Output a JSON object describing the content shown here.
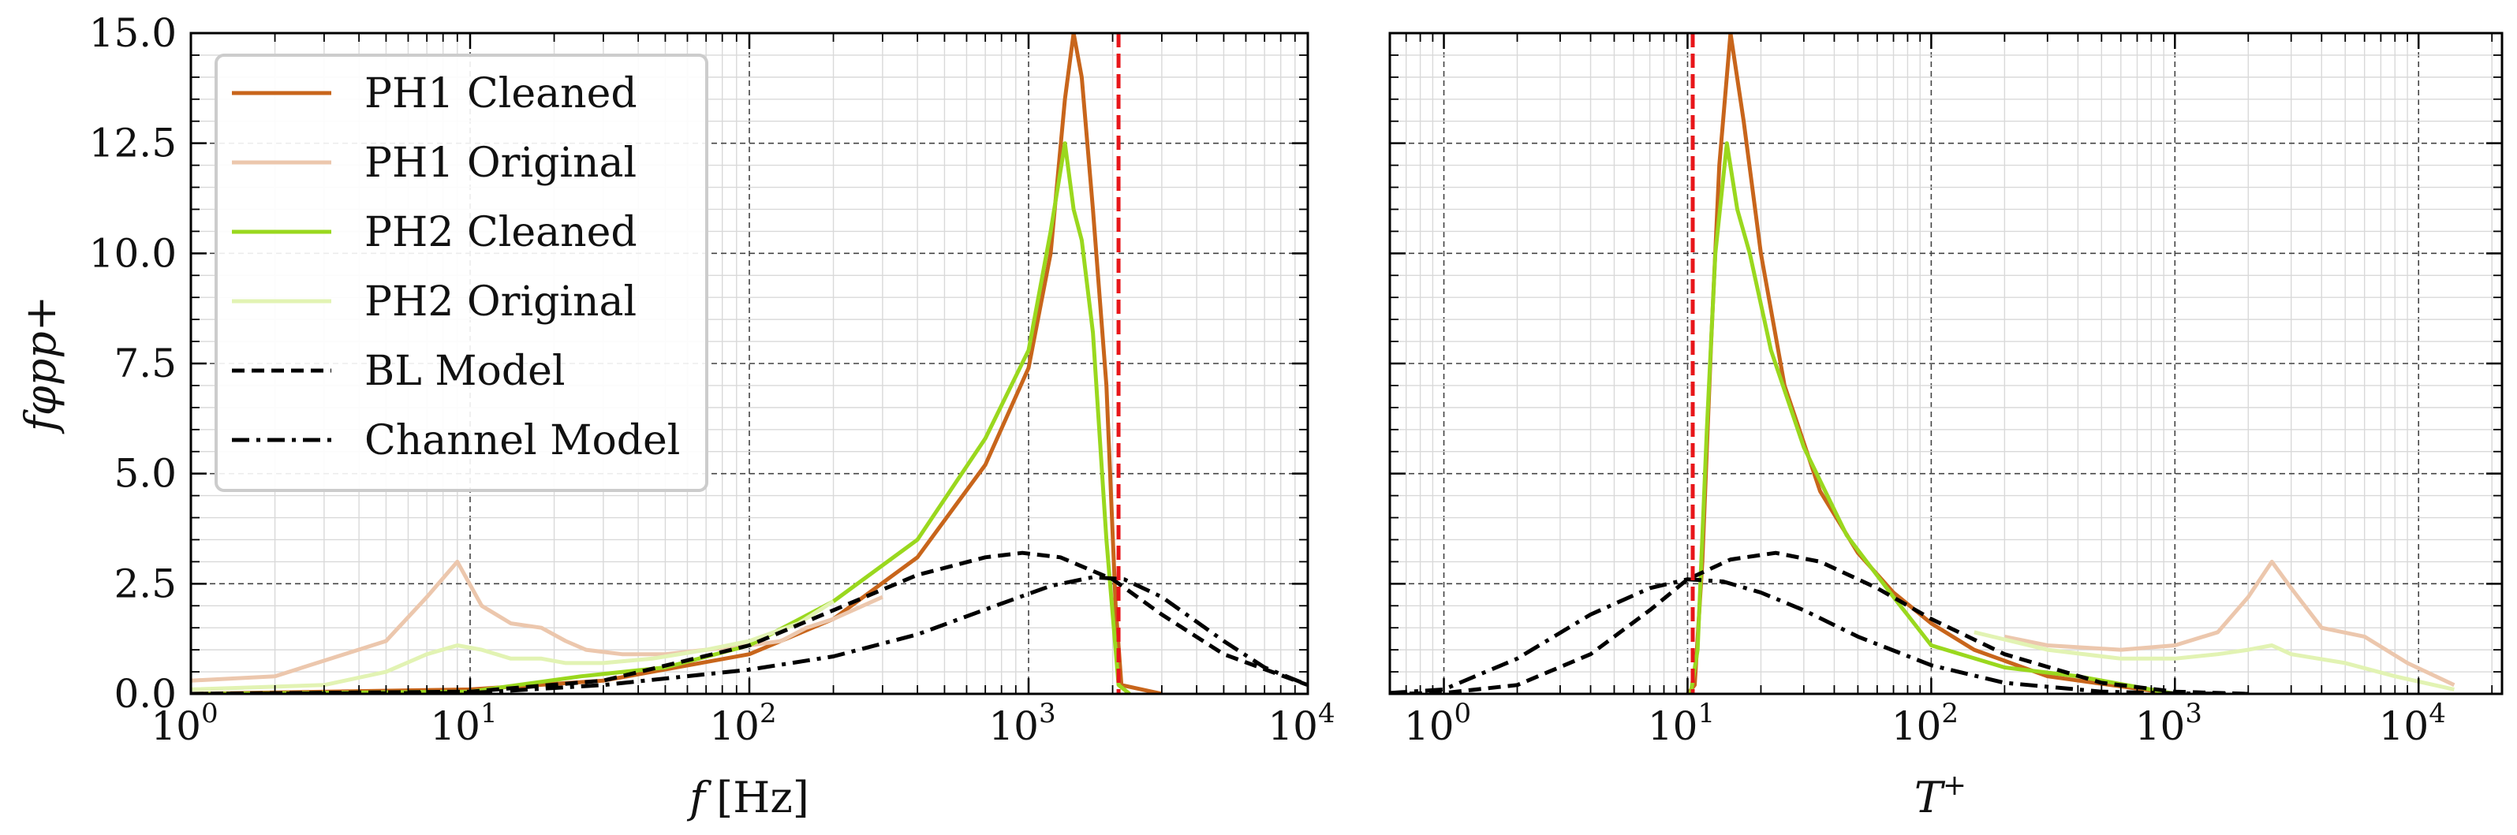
{
  "colors": {
    "ph1_cleaned": "#c8651b",
    "ph1_original": "#ecc7ad",
    "ph2_cleaned": "#9ad81e",
    "ph2_original": "#e2f3b3",
    "bl_model": "#000000",
    "channel_model": "#000000",
    "cutoff_line": "#e8161a"
  },
  "chart_data": [
    {
      "type": "line",
      "xscale": "log",
      "xlabel_main": "f",
      "xlabel_unit": "[Hz]",
      "ylabel": "fφpp+",
      "xlim": [
        1,
        10000
      ],
      "ylim": [
        0,
        15
      ],
      "x_ticks": [
        "0",
        "1",
        "2",
        "3",
        "4"
      ],
      "y_ticks": [
        "0.0",
        "2.5",
        "5.0",
        "7.5",
        "10.0",
        "12.5",
        "15.0"
      ],
      "grid": true,
      "legend_position": "upper-left",
      "vertical_line_x": 2100,
      "series": [
        {
          "name": "PH1 Cleaned",
          "style": "solid",
          "color_key": "ph1_cleaned",
          "x": [
            1,
            10,
            30,
            100,
            200,
            400,
            700,
            1000,
            1200,
            1350,
            1450,
            1550,
            1700,
            1900,
            2050,
            2150,
            3000
          ],
          "y": [
            0,
            0.1,
            0.3,
            0.9,
            1.7,
            3.1,
            5.2,
            7.4,
            10.0,
            13.5,
            15.0,
            14.0,
            11.0,
            7.0,
            2.0,
            0.2,
            0
          ]
        },
        {
          "name": "PH1 Original",
          "style": "solid",
          "color_key": "ph1_original",
          "x": [
            1,
            2,
            5,
            7,
            9,
            11,
            14,
            18,
            22,
            26,
            35,
            50,
            70,
            100,
            130,
            160,
            200,
            300
          ],
          "y": [
            0.3,
            0.4,
            1.2,
            2.2,
            3.0,
            2.0,
            1.6,
            1.5,
            1.2,
            1.0,
            0.9,
            0.9,
            1.0,
            1.1,
            1.2,
            1.5,
            1.7,
            2.2
          ]
        },
        {
          "name": "PH2 Cleaned",
          "style": "solid",
          "color_key": "ph2_cleaned",
          "x": [
            1,
            10,
            25,
            50,
            100,
            200,
            400,
            700,
            1000,
            1200,
            1350,
            1450,
            1550,
            1700,
            1900,
            2100,
            2300
          ],
          "y": [
            0,
            0.05,
            0.4,
            0.6,
            1.1,
            2.1,
            3.5,
            5.8,
            7.8,
            10.5,
            12.5,
            11.0,
            10.3,
            8.2,
            3.5,
            0.2,
            0
          ]
        },
        {
          "name": "PH2 Original",
          "style": "solid",
          "color_key": "ph2_original",
          "x": [
            1,
            3,
            5,
            7,
            9,
            11,
            14,
            18,
            22,
            30,
            45,
            70,
            100,
            150,
            200
          ],
          "y": [
            0.1,
            0.2,
            0.5,
            0.9,
            1.1,
            1.0,
            0.8,
            0.8,
            0.7,
            0.7,
            0.8,
            1.0,
            1.2,
            1.6,
            2.1
          ]
        },
        {
          "name": "BL Model",
          "style": "dashed",
          "color_key": "bl_model",
          "x": [
            1,
            10,
            30,
            100,
            200,
            400,
            700,
            950,
            1300,
            2000,
            3000,
            5000,
            10000
          ],
          "y": [
            0,
            0.05,
            0.3,
            1.1,
            1.9,
            2.7,
            3.1,
            3.2,
            3.1,
            2.6,
            1.8,
            0.9,
            0.2
          ]
        },
        {
          "name": "Channel Model",
          "style": "dashdot",
          "color_key": "channel_model",
          "x": [
            1,
            10,
            30,
            100,
            200,
            400,
            800,
            1200,
            1700,
            2200,
            3000,
            5000,
            7000,
            10000
          ],
          "y": [
            0,
            0.02,
            0.2,
            0.55,
            0.85,
            1.35,
            2.05,
            2.45,
            2.65,
            2.6,
            2.2,
            1.2,
            0.6,
            0.2
          ]
        }
      ]
    },
    {
      "type": "line",
      "xscale": "log",
      "xlabel_main": "T",
      "xlabel_sup": "+",
      "xlim": [
        0.6,
        22000
      ],
      "ylim": [
        0,
        15
      ],
      "x_ticks": [
        "0",
        "1",
        "2",
        "3",
        "4"
      ],
      "grid": true,
      "vertical_line_x": 10.5,
      "series": [
        {
          "name": "PH1 Cleaned",
          "style": "solid",
          "color_key": "ph1_cleaned",
          "x": [
            10,
            10.7,
            11.5,
            12.5,
            13.5,
            15,
            17,
            20,
            25,
            35,
            50,
            70,
            100,
            150,
            300,
            1000
          ],
          "y": [
            0,
            0.2,
            3.0,
            8.0,
            12.0,
            15.0,
            13.0,
            10.0,
            7.0,
            4.6,
            3.2,
            2.3,
            1.6,
            1.0,
            0.4,
            0
          ]
        },
        {
          "name": "PH1 Original",
          "style": "solid",
          "color_key": "ph1_original",
          "x": [
            200,
            300,
            600,
            1000,
            1500,
            2000,
            2500,
            3000,
            4000,
            6000,
            9000,
            14000
          ],
          "y": [
            1.3,
            1.1,
            1.0,
            1.1,
            1.4,
            2.2,
            3.0,
            2.4,
            1.5,
            1.3,
            0.7,
            0.2
          ]
        },
        {
          "name": "PH2 Cleaned",
          "style": "solid",
          "color_key": "ph2_cleaned",
          "x": [
            10.3,
            11,
            12,
            13,
            14.5,
            16,
            18,
            22,
            30,
            45,
            70,
            100,
            200,
            400,
            1000
          ],
          "y": [
            0,
            1.0,
            6.0,
            10.0,
            12.5,
            11.0,
            10.0,
            7.8,
            5.6,
            3.6,
            2.2,
            1.1,
            0.6,
            0.4,
            0
          ]
        },
        {
          "name": "PH2 Original",
          "style": "solid",
          "color_key": "ph2_original",
          "x": [
            150,
            300,
            600,
            1000,
            1500,
            2000,
            2500,
            3000,
            5000,
            8000,
            14000
          ],
          "y": [
            1.4,
            1.0,
            0.8,
            0.8,
            0.9,
            1.0,
            1.1,
            0.9,
            0.7,
            0.4,
            0.1
          ]
        },
        {
          "name": "BL Model",
          "style": "dashed",
          "color_key": "bl_model",
          "x": [
            0.6,
            1,
            2,
            4,
            7,
            10,
            15,
            23,
            35,
            60,
            100,
            200,
            500,
            1000,
            2000
          ],
          "y": [
            0,
            0.02,
            0.2,
            0.9,
            1.9,
            2.6,
            3.05,
            3.2,
            3.0,
            2.4,
            1.7,
            0.9,
            0.25,
            0.05,
            0
          ]
        },
        {
          "name": "Channel Model",
          "style": "dashdot",
          "color_key": "channel_model",
          "x": [
            0.6,
            1,
            2,
            4,
            7,
            10,
            14,
            20,
            30,
            50,
            100,
            200,
            500,
            1000,
            2000
          ],
          "y": [
            0.02,
            0.1,
            0.8,
            1.8,
            2.4,
            2.6,
            2.55,
            2.3,
            1.9,
            1.3,
            0.65,
            0.25,
            0.05,
            0.01,
            0
          ]
        }
      ]
    }
  ]
}
